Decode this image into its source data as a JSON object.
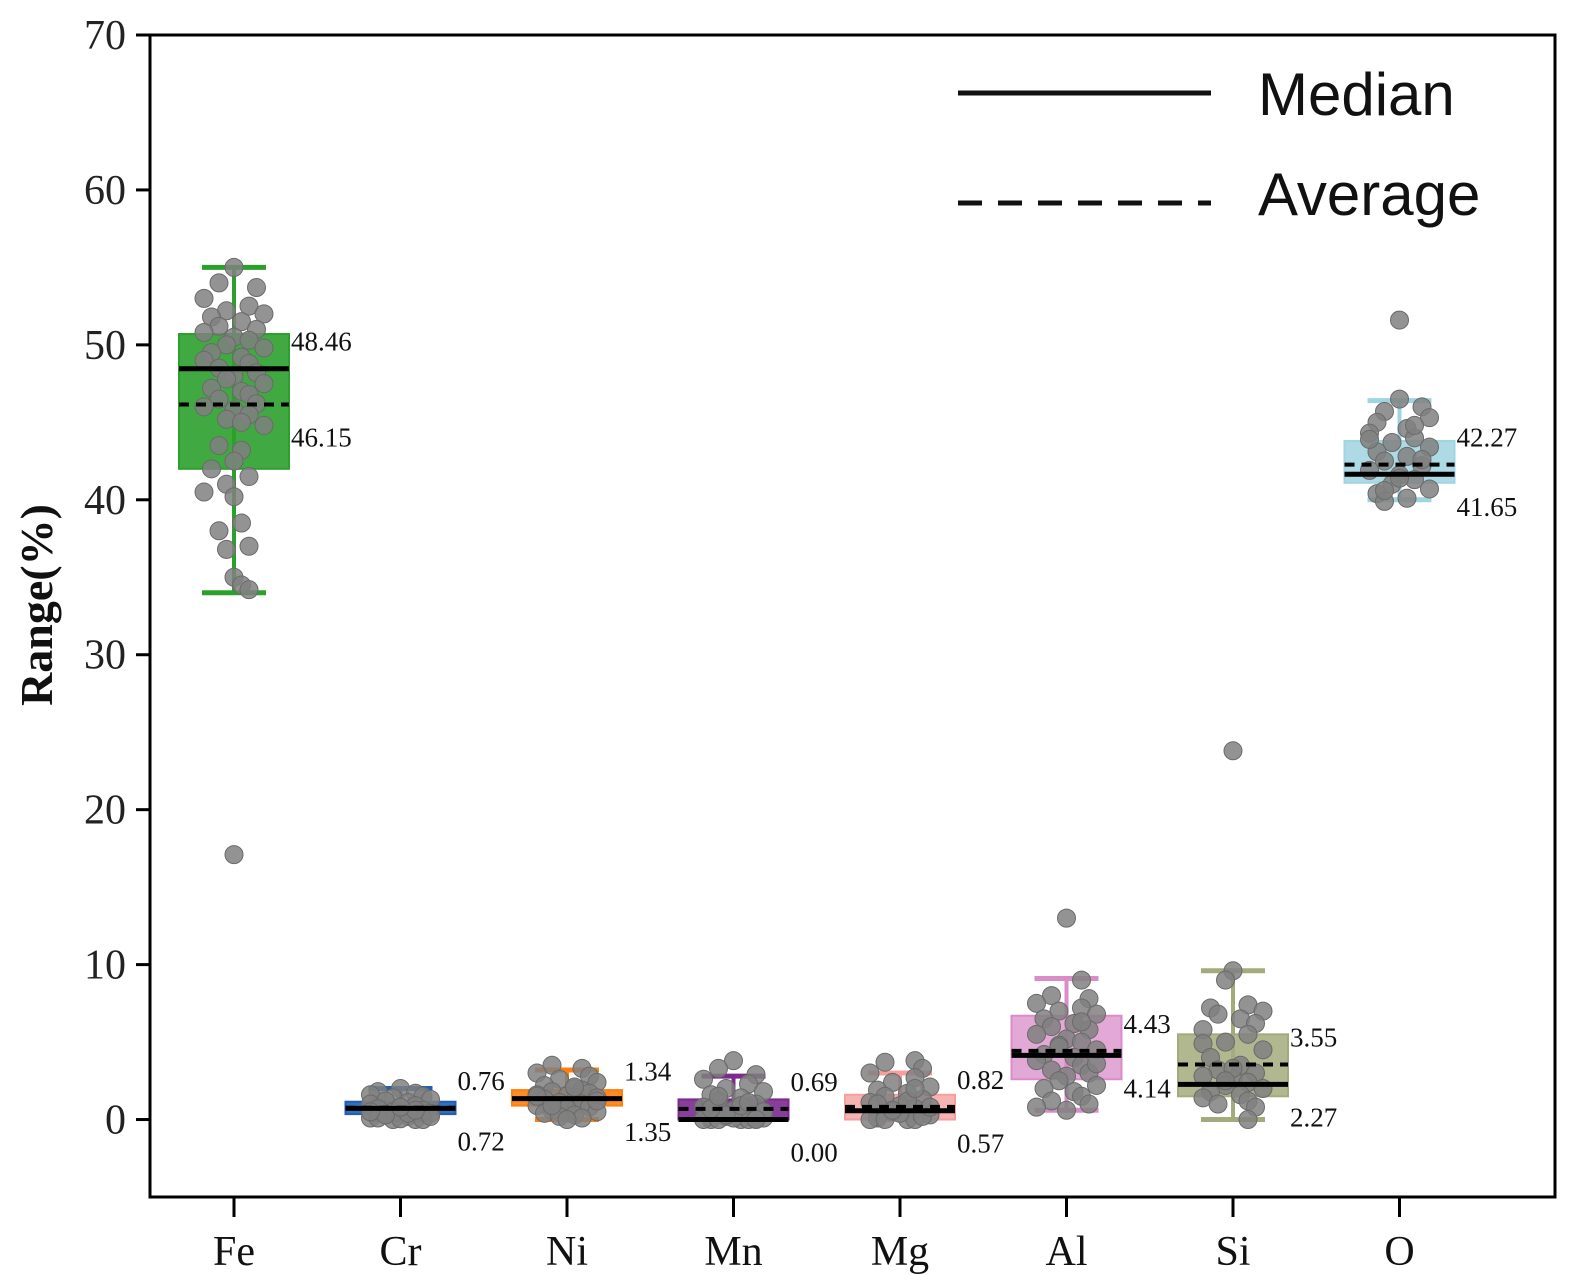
{
  "chart_data": {
    "type": "box",
    "title": "",
    "xlabel": "",
    "ylabel": "Range(%)",
    "ylim": [
      -5,
      70
    ],
    "yticks": [
      0,
      10,
      20,
      30,
      40,
      50,
      60,
      70
    ],
    "legend": {
      "position": "top-right",
      "entries": [
        {
          "label": "Median",
          "style": "solid"
        },
        {
          "label": "Average",
          "style": "dashed"
        }
      ]
    },
    "categories": [
      {
        "name": "Fe",
        "color": "#2ca02c",
        "box_opacity": 0.9,
        "q1": 42.0,
        "q3": 50.7,
        "whisker_low": 34.0,
        "whisker_high": 55.0,
        "median": 48.46,
        "mean": 46.15,
        "median_label": "48.46",
        "mean_label": "46.15",
        "label_order": [
          "median",
          "mean"
        ],
        "points": [
          55,
          54,
          53.7,
          53,
          52.5,
          52.2,
          52,
          51.8,
          51.5,
          51.2,
          51,
          50.8,
          50.5,
          50.3,
          50,
          49.8,
          49.5,
          49.2,
          49,
          48.8,
          48.5,
          48.2,
          48,
          47.8,
          47.5,
          47.2,
          47,
          46.8,
          46.5,
          46.2,
          46,
          45.8,
          45.5,
          45.2,
          45,
          44.8,
          43.5,
          43.2,
          42.5,
          42,
          41.5,
          41,
          40.5,
          40.2,
          38.5,
          38,
          37,
          36.8,
          35,
          34.5,
          34.2,
          17.1
        ],
        "jitter": [
          0.0,
          -0.1,
          0.15,
          -0.2,
          0.1,
          -0.05,
          0.2,
          -0.15,
          0.05,
          -0.1,
          0.15,
          -0.2,
          0.0,
          0.1,
          -0.05,
          0.2,
          -0.15,
          0.05,
          -0.2,
          0.1,
          -0.1,
          0.15,
          0.0,
          -0.05,
          0.2,
          -0.15,
          0.05,
          0.1,
          -0.1,
          0.15,
          -0.2,
          0.0,
          0.1,
          -0.05,
          0.05,
          0.2,
          -0.1,
          0.05,
          0.0,
          -0.15,
          0.1,
          -0.05,
          -0.2,
          0.0,
          0.05,
          -0.1,
          0.1,
          -0.05,
          0.0,
          0.05,
          0.1,
          0.0
        ]
      },
      {
        "name": "Cr",
        "color": "#1f5fb4",
        "box_opacity": 0.9,
        "q1": 0.35,
        "q3": 1.15,
        "whisker_low": 0.0,
        "whisker_high": 2.0,
        "median": 0.72,
        "mean": 0.76,
        "median_label": "0.72",
        "mean_label": "0.76",
        "label_order": [
          "mean",
          "median"
        ],
        "points": [
          2.0,
          1.8,
          1.7,
          1.6,
          1.5,
          1.4,
          1.3,
          1.2,
          1.1,
          1.0,
          0.9,
          0.8,
          0.7,
          0.6,
          0.5,
          0.4,
          0.3,
          0.2,
          0.1,
          0.0,
          0.0,
          0.0,
          0.05,
          0.1,
          0.2,
          0.3,
          0.4,
          0.5,
          0.6,
          0.8
        ],
        "jitter": [
          0.0,
          -0.15,
          0.1,
          -0.2,
          0.15,
          -0.05,
          0.2,
          -0.1,
          0.05,
          -0.2,
          0.1,
          0.0,
          -0.15,
          0.15,
          -0.05,
          0.2,
          -0.1,
          0.05,
          -0.2,
          0.1,
          -0.05,
          0.15,
          0.0,
          -0.15,
          0.2,
          -0.1,
          0.05,
          -0.2,
          0.1,
          0.0
        ]
      },
      {
        "name": "Ni",
        "color": "#ff7f0e",
        "box_opacity": 0.9,
        "q1": 0.9,
        "q3": 1.9,
        "whisker_low": 0.0,
        "whisker_high": 3.2,
        "median": 1.35,
        "mean": 1.34,
        "median_label": "1.35",
        "mean_label": "1.34",
        "label_order": [
          "mean",
          "median"
        ],
        "points": [
          3.5,
          3.3,
          3.0,
          2.8,
          2.6,
          2.4,
          2.2,
          2.0,
          1.9,
          1.8,
          1.7,
          1.6,
          1.5,
          1.4,
          1.3,
          1.2,
          1.1,
          1.0,
          0.9,
          0.8,
          0.7,
          0.6,
          0.5,
          0.4,
          0.3,
          0.2,
          0.1,
          0.0,
          1.5,
          1.2,
          2.1,
          0.9
        ],
        "jitter": [
          -0.1,
          0.1,
          -0.2,
          0.15,
          -0.05,
          0.2,
          -0.15,
          0.05,
          0.1,
          -0.1,
          0.15,
          -0.2,
          0.0,
          0.2,
          -0.15,
          0.05,
          -0.05,
          0.1,
          -0.2,
          0.15,
          0.0,
          -0.1,
          0.2,
          -0.15,
          0.05,
          -0.05,
          0.1,
          0.0,
          -0.2,
          0.2,
          0.05,
          -0.1
        ]
      },
      {
        "name": "Mn",
        "color": "#7b2a8e",
        "box_opacity": 0.9,
        "q1": 0.0,
        "q3": 1.3,
        "whisker_low": 0.0,
        "whisker_high": 2.8,
        "median": 0.0,
        "mean": 0.69,
        "median_label": "0.00",
        "mean_label": "0.69",
        "label_order": [
          "mean",
          "median"
        ],
        "points": [
          3.8,
          3.3,
          2.9,
          2.6,
          2.3,
          2.0,
          1.8,
          1.6,
          1.4,
          1.2,
          1.0,
          0.8,
          0.6,
          0.4,
          0.2,
          0.1,
          0.0,
          0.0,
          0.0,
          0.0,
          0.0,
          0.05,
          0.1,
          0.3,
          0.5,
          0.7,
          0.9,
          1.1,
          1.5,
          0.0
        ],
        "jitter": [
          0.0,
          -0.1,
          0.15,
          -0.2,
          0.1,
          -0.05,
          0.2,
          -0.15,
          0.05,
          -0.1,
          0.15,
          -0.2,
          0.0,
          0.1,
          -0.05,
          0.2,
          -0.15,
          0.05,
          -0.2,
          0.1,
          -0.1,
          0.15,
          0.0,
          -0.05,
          0.2,
          -0.15,
          0.05,
          0.1,
          -0.1,
          0.15
        ]
      },
      {
        "name": "Mg",
        "color": "#f4a0a0",
        "box_opacity": 0.8,
        "q1": 0.0,
        "q3": 1.6,
        "whisker_low": 0.0,
        "whisker_high": 3.0,
        "median": 0.57,
        "mean": 0.82,
        "median_label": "0.57",
        "mean_label": "0.82",
        "label_order": [
          "mean",
          "median"
        ],
        "points": [
          3.8,
          3.7,
          3.3,
          3.0,
          2.7,
          2.4,
          2.1,
          1.9,
          1.7,
          1.5,
          1.3,
          1.1,
          0.9,
          0.7,
          0.5,
          0.3,
          0.1,
          0.0,
          0.0,
          0.0,
          0.0,
          0.2,
          0.4,
          0.6,
          0.8,
          1.0,
          1.2,
          2.0
        ],
        "jitter": [
          0.1,
          -0.1,
          0.15,
          -0.2,
          0.1,
          -0.05,
          0.2,
          -0.15,
          0.05,
          -0.1,
          0.15,
          -0.2,
          0.0,
          0.1,
          -0.05,
          0.2,
          -0.15,
          0.05,
          -0.2,
          0.1,
          -0.1,
          0.15,
          0.0,
          -0.05,
          0.2,
          -0.15,
          0.05,
          0.1
        ]
      },
      {
        "name": "Al",
        "color": "#d98cc8",
        "box_opacity": 0.75,
        "q1": 2.6,
        "q3": 6.7,
        "whisker_low": 0.6,
        "whisker_high": 9.1,
        "median": 4.14,
        "mean": 4.43,
        "median_label": "4.14",
        "mean_label": "4.43",
        "label_order": [
          "mean",
          "median"
        ],
        "points": [
          13.0,
          9.0,
          8.0,
          7.8,
          7.5,
          7.2,
          7.0,
          6.8,
          6.5,
          6.2,
          6.0,
          5.8,
          5.5,
          5.2,
          5.0,
          4.8,
          4.5,
          4.2,
          4.0,
          3.8,
          3.5,
          3.2,
          3.0,
          2.8,
          2.5,
          2.2,
          2.0,
          1.8,
          1.5,
          1.2,
          1.0,
          0.8,
          0.6,
          6.3,
          4.7,
          3.6
        ],
        "jitter": [
          0.0,
          0.1,
          -0.1,
          0.15,
          -0.2,
          0.1,
          -0.05,
          0.2,
          -0.15,
          0.05,
          -0.1,
          0.15,
          -0.2,
          0.0,
          0.1,
          -0.05,
          0.2,
          -0.15,
          0.05,
          -0.2,
          0.1,
          -0.1,
          0.15,
          0.0,
          -0.05,
          0.2,
          -0.15,
          0.05,
          0.1,
          -0.1,
          0.15,
          -0.2,
          0.0,
          0.1,
          -0.05,
          0.2
        ]
      },
      {
        "name": "Si",
        "color": "#a3ab7d",
        "box_opacity": 0.85,
        "q1": 1.5,
        "q3": 5.5,
        "whisker_low": 0.0,
        "whisker_high": 9.6,
        "median": 2.27,
        "mean": 3.55,
        "median_label": "2.27",
        "mean_label": "3.55",
        "label_order": [
          "mean",
          "median"
        ],
        "points": [
          23.8,
          9.6,
          9.0,
          7.4,
          7.2,
          7.0,
          6.8,
          6.5,
          6.2,
          5.8,
          5.5,
          5.0,
          4.9,
          4.5,
          4.0,
          3.5,
          3.2,
          3.0,
          2.8,
          2.6,
          2.4,
          2.2,
          2.0,
          1.8,
          1.6,
          1.4,
          1.2,
          1.0,
          0.8,
          0.0,
          3.3,
          2.5
        ],
        "jitter": [
          0.0,
          0.0,
          -0.05,
          0.1,
          -0.15,
          0.2,
          -0.1,
          0.05,
          0.15,
          -0.2,
          0.1,
          -0.05,
          -0.2,
          0.2,
          -0.15,
          0.05,
          -0.1,
          0.15,
          -0.2,
          0.0,
          0.1,
          -0.05,
          0.2,
          -0.15,
          0.05,
          -0.2,
          0.1,
          -0.1,
          0.15,
          0.1,
          0.0,
          -0.05
        ]
      },
      {
        "name": "O",
        "color": "#9fd4e0",
        "box_opacity": 0.85,
        "q1": 41.1,
        "q3": 43.8,
        "whisker_low": 40.0,
        "whisker_high": 46.4,
        "median": 41.65,
        "mean": 42.27,
        "median_label": "41.65",
        "mean_label": "42.27",
        "label_order": [
          "mean",
          "median"
        ],
        "points": [
          51.6,
          46.5,
          46.0,
          45.7,
          45.3,
          45.0,
          44.6,
          44.3,
          44.0,
          43.7,
          43.4,
          43.1,
          42.8,
          42.5,
          42.2,
          41.9,
          41.6,
          41.3,
          41.0,
          40.7,
          40.4,
          40.1,
          39.9,
          44.8,
          43.9,
          42.6,
          41.4,
          40.6
        ],
        "jitter": [
          0.0,
          0.0,
          0.15,
          -0.1,
          0.2,
          -0.15,
          0.05,
          -0.2,
          0.1,
          -0.05,
          0.2,
          -0.15,
          0.05,
          -0.1,
          0.15,
          -0.2,
          0.0,
          0.1,
          -0.05,
          0.2,
          -0.15,
          0.05,
          -0.1,
          0.1,
          -0.2,
          0.15,
          0.0,
          -0.1
        ]
      }
    ]
  }
}
